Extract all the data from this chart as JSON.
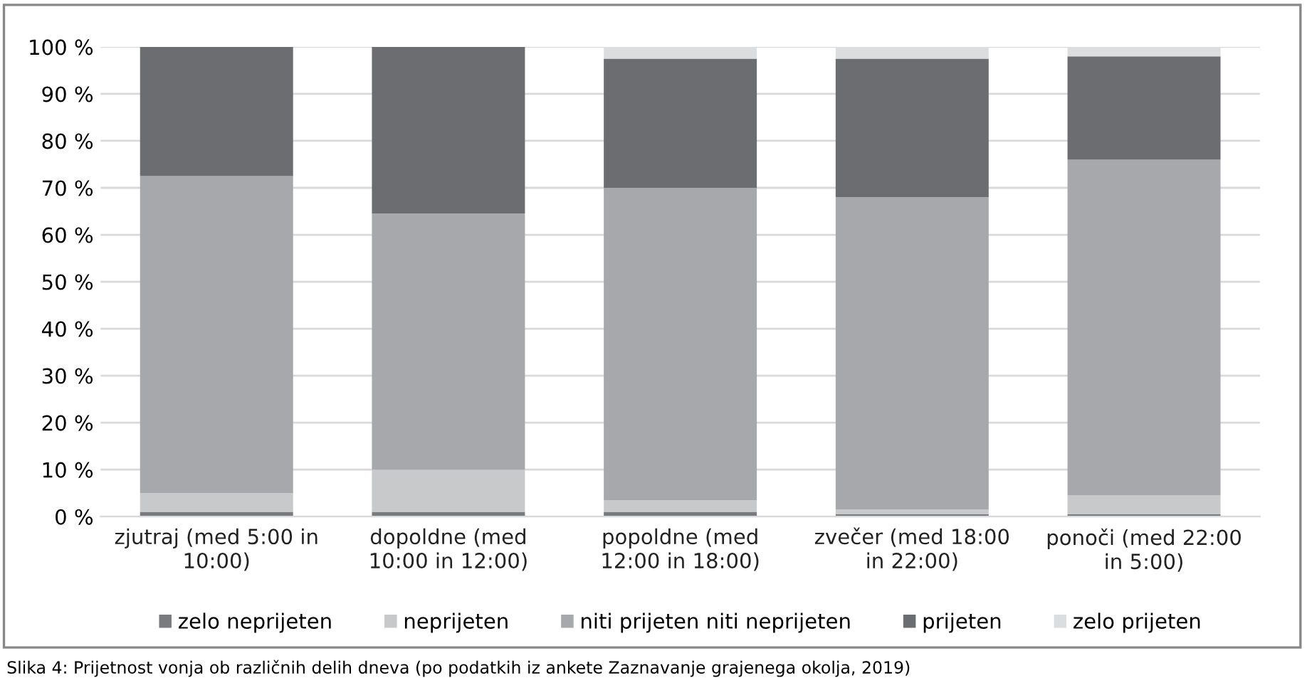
{
  "chart_data": {
    "type": "bar",
    "stacked": true,
    "categories": [
      "zjutraj (med 5:00 in 10:00)",
      "dopoldne (med 10:00 in 12:00)",
      "popoldne (med 12:00 in 18:00)",
      "zvečer (med 18:00 in 22:00)",
      "ponoči (med 22:00 in 5:00)"
    ],
    "series": [
      {
        "name": "zelo neprijeten",
        "color": "#7a7b7e",
        "values": [
          1,
          1,
          1,
          0.5,
          0.5
        ]
      },
      {
        "name": "neprijeten",
        "color": "#c8c9cb",
        "values": [
          4,
          9,
          2.5,
          1,
          4
        ]
      },
      {
        "name": "niti prijeten niti neprijeten",
        "color": "#a7a8ab",
        "values": [
          67.5,
          54.5,
          66.5,
          66.5,
          71.5
        ]
      },
      {
        "name": "prijeten",
        "color": "#6c6d70",
        "values": [
          27.5,
          35.5,
          27.5,
          29.5,
          22
        ]
      },
      {
        "name": "zelo prijeten",
        "color": "#dcdddf",
        "values": [
          0,
          0,
          2.5,
          2.5,
          2
        ]
      }
    ],
    "ylim": [
      0,
      100
    ],
    "yticks": [
      {
        "value": 0,
        "label": "0 %"
      },
      {
        "value": 10,
        "label": "10 %"
      },
      {
        "value": 20,
        "label": "20 %"
      },
      {
        "value": 30,
        "label": "30 %"
      },
      {
        "value": 40,
        "label": "40 %"
      },
      {
        "value": 50,
        "label": "50 %"
      },
      {
        "value": 60,
        "label": "60 %"
      },
      {
        "value": 70,
        "label": "70 %"
      },
      {
        "value": 80,
        "label": "80 %"
      },
      {
        "value": 90,
        "label": "90 %"
      },
      {
        "value": 100,
        "label": "100 %"
      }
    ],
    "grid": "y",
    "legend": "bottom",
    "annotations": [
      "Slika 4: Prijetnost vonja ob različnih delih dneva (po podatkih iz ankete Zaznavanje grajenega okolja, 2019)"
    ]
  }
}
